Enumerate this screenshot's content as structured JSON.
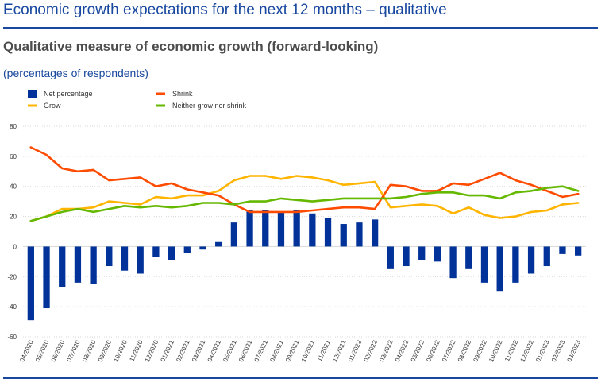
{
  "header": {
    "title": "Economic growth expectations for the next 12 months – qualitative"
  },
  "chart_data": {
    "type": "bar",
    "title": "Qualitative measure of economic growth (forward-looking)",
    "subtitle": "(percentages of respondents)",
    "xlabel": "",
    "ylabel": "",
    "ylim": [
      -60,
      80
    ],
    "yticks": [
      80,
      60,
      40,
      20,
      0,
      -20,
      -40,
      -60
    ],
    "grid": true,
    "legend_position": "top-left",
    "categories": [
      "04/2020",
      "05/2020",
      "06/2020",
      "07/2020",
      "08/2020",
      "09/2020",
      "10/2020",
      "11/2020",
      "12/2020",
      "01/2021",
      "02/2021",
      "03/2021",
      "04/2021",
      "05/2021",
      "06/2021",
      "07/2021",
      "08/2021",
      "09/2021",
      "10/2021",
      "11/2021",
      "12/2021",
      "01/2022",
      "02/2022",
      "03/2022",
      "04/2022",
      "05/2022",
      "06/2022",
      "07/2022",
      "08/2022",
      "09/2022",
      "10/2022",
      "11/2022",
      "12/2022",
      "01/2023",
      "02/2023",
      "03/2023"
    ],
    "series": [
      {
        "name": "Net percentage",
        "type": "bar",
        "color": "#003299",
        "values": [
          -49,
          -41,
          -27,
          -24,
          -25,
          -13,
          -16,
          -18,
          -7,
          -9,
          -4,
          -2,
          3,
          16,
          24,
          24,
          23,
          24,
          22,
          19,
          15,
          16,
          18,
          -15,
          -13,
          -9,
          -10,
          -21,
          -15,
          -24,
          -30,
          -24,
          -18,
          -13,
          -5,
          -6
        ]
      },
      {
        "name": "Grow",
        "type": "line",
        "color": "#ffb400",
        "values": [
          17,
          20,
          25,
          25,
          26,
          30,
          29,
          28,
          33,
          32,
          34,
          34,
          37,
          44,
          47,
          47,
          45,
          47,
          46,
          44,
          41,
          42,
          43,
          26,
          27,
          28,
          27,
          22,
          26,
          21,
          19,
          20,
          23,
          24,
          28,
          29
        ]
      },
      {
        "name": "Shrink",
        "type": "line",
        "color": "#ff4b00",
        "values": [
          66,
          61,
          52,
          50,
          51,
          44,
          45,
          46,
          40,
          42,
          38,
          36,
          34,
          28,
          23,
          23,
          23,
          23,
          24,
          25,
          26,
          26,
          25,
          41,
          40,
          37,
          37,
          42,
          41,
          45,
          49,
          44,
          41,
          37,
          33,
          35
        ]
      },
      {
        "name": "Neither grow nor shrink",
        "type": "line",
        "color": "#65b800",
        "values": [
          17,
          20,
          23,
          25,
          23,
          25,
          27,
          26,
          27,
          26,
          27,
          29,
          29,
          28,
          30,
          30,
          32,
          31,
          30,
          31,
          32,
          32,
          32,
          32,
          33,
          35,
          36,
          36,
          34,
          34,
          32,
          36,
          37,
          39,
          40,
          37
        ]
      }
    ]
  }
}
